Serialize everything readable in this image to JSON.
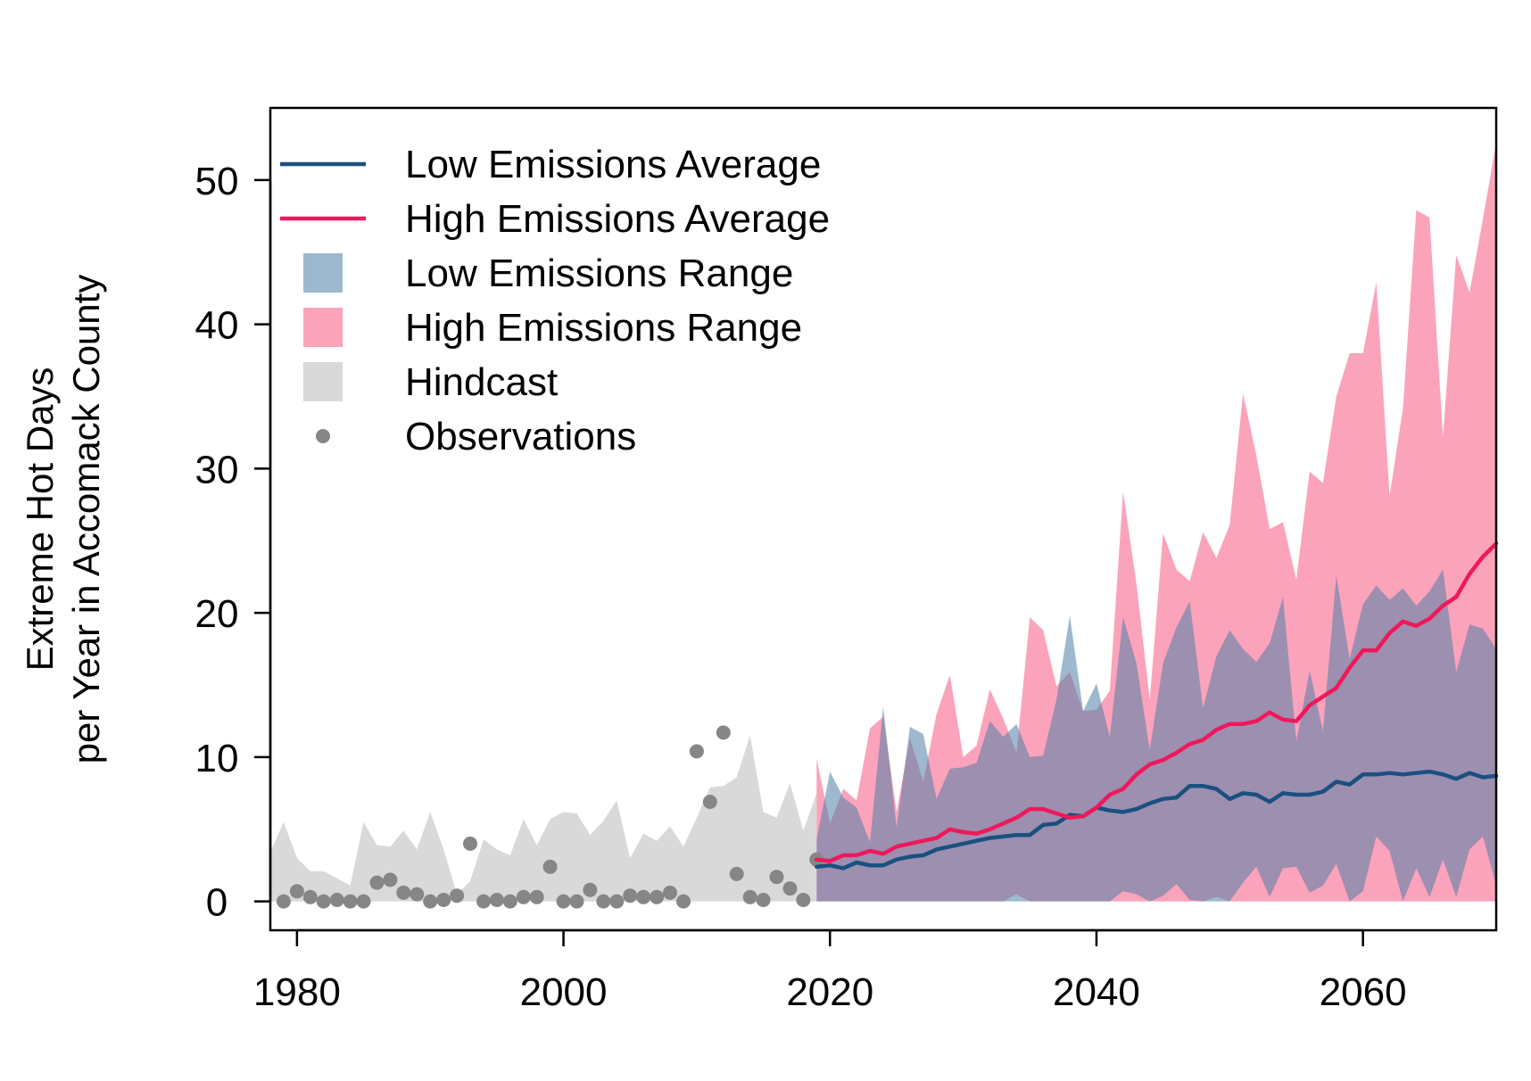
{
  "chart_data": {
    "type": "line",
    "title": "",
    "xlabel": "",
    "ylabel_lines": [
      "Extreme Hot Days",
      "per Year in Accomack County"
    ],
    "xlim": [
      1978,
      2070
    ],
    "ylim": [
      -2,
      55
    ],
    "x_ticks": [
      1980,
      2000,
      2020,
      2040,
      2060
    ],
    "y_ticks": [
      0,
      10,
      20,
      30,
      40,
      50
    ],
    "grid": false,
    "legend_position": "top-left",
    "legend": [
      {
        "label": "Low Emissions Average",
        "kind": "line",
        "color": "#1a5080"
      },
      {
        "label": "High Emissions Average",
        "kind": "line",
        "color": "#f0185a"
      },
      {
        "label": "Low Emissions Range",
        "kind": "box",
        "color": "#9cb8cf"
      },
      {
        "label": "High Emissions Range",
        "kind": "box",
        "color": "#fba3bb"
      },
      {
        "label": "Hindcast",
        "kind": "box",
        "color": "#d9d9d9"
      },
      {
        "label": "Observations",
        "kind": "point",
        "color": "#868686"
      }
    ],
    "colors": {
      "low_avg": "#1a5080",
      "high_avg": "#f0185a",
      "low_range": "#4f7fa8",
      "low_range_opacity": 0.55,
      "high_range": "#fba3bb",
      "hindcast": "#d9d9d9",
      "observations": "#868686"
    },
    "hindcast": {
      "x": [
        1978,
        1979,
        1980,
        1981,
        1982,
        1983,
        1984,
        1985,
        1986,
        1987,
        1988,
        1989,
        1990,
        1991,
        1992,
        1993,
        1994,
        1995,
        1996,
        1997,
        1998,
        1999,
        2000,
        2001,
        2002,
        2003,
        2004,
        2005,
        2006,
        2007,
        2008,
        2009,
        2010,
        2011,
        2012,
        2013,
        2014,
        2015,
        2016,
        2017,
        2018,
        2019
      ],
      "upper": [
        3.4,
        5.5,
        3.0,
        2.1,
        2.1,
        1.6,
        1.1,
        5.5,
        3.9,
        3.8,
        4.9,
        3.6,
        6.2,
        3.6,
        0.5,
        1.4,
        4.3,
        3.6,
        3.2,
        5.7,
        3.9,
        5.7,
        6.2,
        6.1,
        4.6,
        5.6,
        7.0,
        3.0,
        4.7,
        4.2,
        5.2,
        3.8,
        5.8,
        7.9,
        8.0,
        8.6,
        11.5,
        6.2,
        5.8,
        8.2,
        4.9,
        7.5
      ],
      "lower": [
        0,
        0,
        0,
        0,
        0,
        0,
        0,
        0,
        0,
        0,
        0,
        0,
        0,
        0,
        0,
        0,
        0,
        0,
        0,
        0,
        0,
        0,
        0,
        0,
        0,
        0,
        0,
        0,
        0,
        0,
        0,
        0,
        0,
        0,
        0,
        0,
        0,
        0,
        0,
        0,
        0,
        0
      ]
    },
    "observations": {
      "x": [
        1979,
        1980,
        1981,
        1982,
        1983,
        1984,
        1985,
        1986,
        1987,
        1988,
        1989,
        1990,
        1991,
        1992,
        1993,
        1994,
        1995,
        1996,
        1997,
        1998,
        1999,
        2000,
        2001,
        2002,
        2003,
        2004,
        2005,
        2006,
        2007,
        2008,
        2009,
        2010,
        2011,
        2012,
        2013,
        2014,
        2015,
        2016,
        2017,
        2018,
        2019
      ],
      "y": [
        0,
        0.7,
        0.3,
        0,
        0.1,
        0,
        0,
        1.3,
        1.5,
        0.6,
        0.5,
        0,
        0.1,
        0.4,
        4.0,
        0,
        0.1,
        0,
        0.3,
        0.3,
        2.4,
        0,
        0,
        0.8,
        0,
        0,
        0.4,
        0.3,
        0.3,
        0.6,
        0,
        10.4,
        6.9,
        11.7,
        1.9,
        0.3,
        0.1,
        1.7,
        0.9,
        0.1,
        2.9
      ]
    },
    "high_range": {
      "x": [
        2019,
        2020,
        2021,
        2022,
        2023,
        2024,
        2025,
        2026,
        2027,
        2028,
        2029,
        2030,
        2031,
        2032,
        2033,
        2034,
        2035,
        2036,
        2037,
        2038,
        2039,
        2040,
        2041,
        2042,
        2043,
        2044,
        2045,
        2046,
        2047,
        2048,
        2049,
        2050,
        2051,
        2052,
        2053,
        2054,
        2055,
        2056,
        2057,
        2058,
        2059,
        2060,
        2061,
        2062,
        2063,
        2064,
        2065,
        2066,
        2067,
        2068,
        2069,
        2070
      ],
      "upper": [
        9.9,
        5.4,
        7.8,
        7.0,
        12.0,
        12.8,
        6.2,
        11.3,
        8.3,
        13.0,
        15.7,
        10.0,
        10.8,
        14.7,
        12.7,
        10.3,
        19.7,
        18.8,
        14.9,
        15.9,
        13.2,
        13.3,
        14.6,
        28.4,
        22.0,
        14.0,
        25.5,
        23.0,
        22.2,
        25.6,
        23.8,
        26.1,
        35.2,
        30.9,
        25.8,
        26.3,
        22.3,
        29.8,
        29.0,
        35.0,
        38.0,
        38.0,
        42.9,
        28.1,
        34.2,
        47.9,
        47.4,
        32.2,
        44.8,
        42.2,
        47.3,
        52.6
      ],
      "lower": [
        0,
        0,
        0,
        0,
        0,
        0,
        0,
        0,
        0,
        0,
        0,
        0,
        0,
        0,
        0,
        0.5,
        0,
        0,
        0,
        0,
        0,
        0,
        0,
        0,
        0,
        0,
        0,
        0,
        0,
        0,
        0.3,
        0,
        0,
        0,
        0,
        0,
        0,
        0,
        0,
        0,
        0,
        0,
        0,
        0,
        0,
        0,
        0,
        0,
        0,
        0,
        0,
        0
      ]
    },
    "low_range": {
      "x": [
        2019,
        2020,
        2021,
        2022,
        2023,
        2024,
        2025,
        2026,
        2027,
        2028,
        2029,
        2030,
        2031,
        2032,
        2033,
        2034,
        2035,
        2036,
        2037,
        2038,
        2039,
        2040,
        2041,
        2042,
        2043,
        2044,
        2045,
        2046,
        2047,
        2048,
        2049,
        2050,
        2051,
        2052,
        2053,
        2054,
        2055,
        2056,
        2057,
        2058,
        2059,
        2060,
        2061,
        2062,
        2063,
        2064,
        2065,
        2066,
        2067,
        2068,
        2069,
        2070
      ],
      "upper": [
        4.3,
        9.0,
        7.2,
        6.5,
        4.1,
        13.5,
        5.1,
        12.1,
        11.6,
        7.1,
        9.2,
        9.3,
        9.6,
        12.5,
        11.4,
        12.3,
        10.0,
        10.1,
        14.0,
        19.8,
        13.2,
        15.1,
        11.4,
        19.7,
        16.5,
        10.5,
        16.5,
        19.0,
        20.8,
        13.4,
        17.0,
        18.8,
        17.5,
        16.6,
        17.9,
        21.1,
        11.1,
        16.0,
        11.8,
        22.6,
        16.8,
        20.6,
        21.9,
        20.9,
        21.7,
        20.5,
        21.5,
        23.0,
        15.9,
        19.2,
        18.9,
        17.5
      ],
      "lower": [
        0,
        0,
        0,
        0,
        0,
        0,
        0,
        0,
        0,
        0,
        0,
        0,
        0,
        0,
        0,
        0,
        0,
        0,
        0,
        0,
        0,
        0,
        0,
        0.7,
        0.5,
        0,
        0.4,
        1.2,
        0.1,
        0,
        0,
        0,
        1.3,
        2.4,
        0.3,
        2.3,
        2.4,
        0.6,
        1.1,
        2.6,
        0,
        0.7,
        4.5,
        3.5,
        0,
        2.3,
        0.3,
        2.9,
        0.3,
        3.6,
        4.5,
        1.1
      ]
    },
    "series": [
      {
        "name": "Low Emissions Average",
        "x": [
          2019,
          2020,
          2021,
          2022,
          2023,
          2024,
          2025,
          2026,
          2027,
          2028,
          2029,
          2030,
          2031,
          2032,
          2033,
          2034,
          2035,
          2036,
          2037,
          2038,
          2039,
          2040,
          2041,
          2042,
          2043,
          2044,
          2045,
          2046,
          2047,
          2048,
          2049,
          2050,
          2051,
          2052,
          2053,
          2054,
          2055,
          2056,
          2057,
          2058,
          2059,
          2060,
          2061,
          2062,
          2063,
          2064,
          2065,
          2066,
          2067,
          2068,
          2069,
          2070
        ],
        "values": [
          2.4,
          2.5,
          2.3,
          2.7,
          2.5,
          2.5,
          2.9,
          3.1,
          3.2,
          3.6,
          3.8,
          4.0,
          4.2,
          4.4,
          4.5,
          4.6,
          4.6,
          5.3,
          5.4,
          6.0,
          5.9,
          6.5,
          6.3,
          6.2,
          6.4,
          6.8,
          7.1,
          7.2,
          8.0,
          8.0,
          7.8,
          7.1,
          7.5,
          7.4,
          6.9,
          7.5,
          7.4,
          7.4,
          7.6,
          8.3,
          8.1,
          8.8,
          8.8,
          8.9,
          8.8,
          8.9,
          9.0,
          8.8,
          8.5,
          8.9,
          8.6,
          8.7
        ]
      },
      {
        "name": "High Emissions Average",
        "x": [
          2019,
          2020,
          2021,
          2022,
          2023,
          2024,
          2025,
          2026,
          2027,
          2028,
          2029,
          2030,
          2031,
          2032,
          2033,
          2034,
          2035,
          2036,
          2037,
          2038,
          2039,
          2040,
          2041,
          2042,
          2043,
          2044,
          2045,
          2046,
          2047,
          2048,
          2049,
          2050,
          2051,
          2052,
          2053,
          2054,
          2055,
          2056,
          2057,
          2058,
          2059,
          2060,
          2061,
          2062,
          2063,
          2064,
          2065,
          2066,
          2067,
          2068,
          2069,
          2070
        ],
        "values": [
          2.9,
          2.8,
          3.2,
          3.2,
          3.5,
          3.3,
          3.8,
          4.0,
          4.2,
          4.4,
          5.0,
          4.8,
          4.7,
          5.0,
          5.4,
          5.8,
          6.4,
          6.4,
          6.1,
          5.8,
          5.9,
          6.5,
          7.4,
          7.8,
          8.8,
          9.5,
          9.8,
          10.3,
          10.9,
          11.2,
          11.9,
          12.3,
          12.3,
          12.5,
          13.1,
          12.6,
          12.5,
          13.6,
          14.2,
          14.8,
          16.2,
          17.4,
          17.4,
          18.6,
          19.4,
          19.1,
          19.6,
          20.5,
          21.1,
          22.7,
          23.9,
          24.8
        ]
      }
    ]
  }
}
